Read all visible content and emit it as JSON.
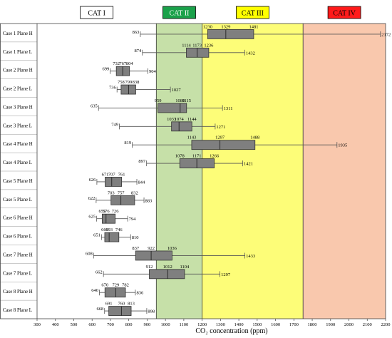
{
  "chart_data": {
    "type": "box",
    "xlabel": "CO₂ concentration (ppm)",
    "xlim": [
      300,
      2200
    ],
    "xticks": [
      300,
      400,
      500,
      600,
      700,
      800,
      900,
      1000,
      1100,
      1200,
      1300,
      1400,
      1500,
      1600,
      1700,
      1800,
      1900,
      2000,
      2100,
      2200
    ],
    "categories_zones": [
      {
        "label": "CAT I",
        "from": 300,
        "to": 950,
        "color": "#ffffff",
        "header_color": "#ffffff",
        "header_text_color": "#000000"
      },
      {
        "label": "CAT II",
        "from": 950,
        "to": 1200,
        "color": "#c6e0a8",
        "header_color": "#1aa14a",
        "header_text_color": "#ffffff"
      },
      {
        "label": "CAT III",
        "from": 1200,
        "to": 1750,
        "color": "#fdfd78",
        "header_color": "#ffff00",
        "header_text_color": "#000000"
      },
      {
        "label": "CAT IV",
        "from": 1750,
        "to": 2200,
        "color": "#f9c8ad",
        "header_color": "#ff1a1a",
        "header_text_color": "#000000"
      }
    ],
    "series": [
      {
        "name": "Case 1 Plane H",
        "min": 863,
        "q1": 1230,
        "median": 1329,
        "q3": 1481,
        "max": 2172
      },
      {
        "name": "Case 1 Plane L",
        "min": 874,
        "q1": 1114,
        "median": 1173,
        "q3": 1236,
        "max": 1432
      },
      {
        "name": "Case 2 Plane H",
        "min": 699,
        "q1": 732,
        "median": 767,
        "q3": 804,
        "max": 904
      },
      {
        "name": "Case 2 Plane L",
        "min": 736,
        "q1": 758,
        "median": 799,
        "q3": 838,
        "max": 1027
      },
      {
        "name": "Case 3 Plane H",
        "min": 635,
        "q1": 959,
        "median": 1080,
        "q3": 1115,
        "max": 1311
      },
      {
        "name": "Case 3 Plane L",
        "min": 749,
        "q1": 1033,
        "median": 1074,
        "q3": 1144,
        "max": 1271
      },
      {
        "name": "Case 4 Plane H",
        "min": 819,
        "q1": 1143,
        "median": 1297,
        "q3": 1488,
        "max": 1935
      },
      {
        "name": "Case 4 Plane L",
        "min": 897,
        "q1": 1078,
        "median": 1171,
        "q3": 1266,
        "max": 1421
      },
      {
        "name": "Case 5 Plane H",
        "min": 626,
        "q1": 671,
        "median": 707,
        "q3": 761,
        "max": 844
      },
      {
        "name": "Case 5 Plane L",
        "min": 622,
        "q1": 703,
        "median": 757,
        "q3": 832,
        "max": 883
      },
      {
        "name": "Case 6 Plane H",
        "min": 625,
        "q1": 655,
        "median": 676,
        "q3": 726,
        "max": 794
      },
      {
        "name": "Case 6 Plane L",
        "min": 651,
        "q1": 669,
        "median": 693,
        "q3": 746,
        "max": 810
      },
      {
        "name": "Case 7 Plane H",
        "min": 608,
        "q1": 837,
        "median": 922,
        "q3": 1036,
        "max": 1433
      },
      {
        "name": "Case 7 Plane L",
        "min": 662,
        "q1": 912,
        "median": 1012,
        "q3": 1104,
        "max": 1297
      },
      {
        "name": "Case 8 Plane H",
        "min": 640,
        "q1": 670,
        "median": 729,
        "q3": 782,
        "max": 836
      },
      {
        "name": "Case 8 Plane L",
        "min": 668,
        "q1": 691,
        "median": 760,
        "q3": 813,
        "max": 898
      }
    ],
    "colors": {
      "box": "#7f7f7f",
      "stroke": "#333333",
      "whisker": "#555555"
    }
  }
}
